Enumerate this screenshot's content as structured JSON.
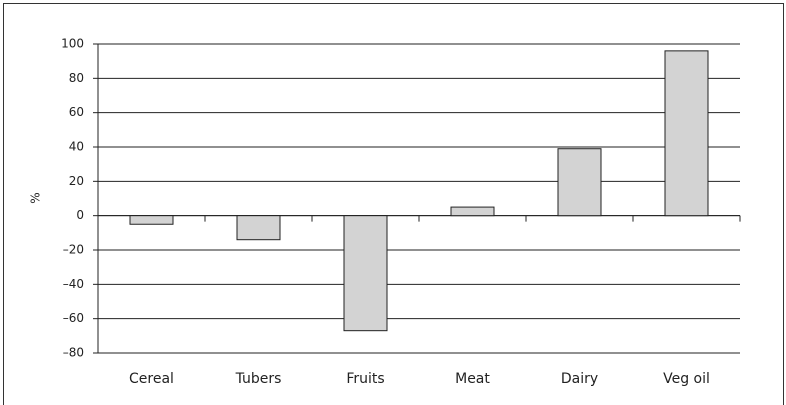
{
  "chart_data": {
    "type": "bar",
    "y_label": "%",
    "categories": [
      "Cereal",
      "Tubers",
      "Fruits",
      "Meat",
      "Dairy",
      "Veg oil"
    ],
    "values": [
      -5,
      -14,
      -67,
      5,
      39,
      96
    ],
    "color": "#d3d3d3",
    "ylim": [
      -80,
      100
    ],
    "yticks": [
      {
        "value": -80,
        "label": "–80"
      },
      {
        "value": -60,
        "label": "–60"
      },
      {
        "value": -40,
        "label": "–40"
      },
      {
        "value": -20,
        "label": "–20"
      },
      0,
      20,
      40,
      60,
      80,
      100
    ],
    "grid": true
  }
}
